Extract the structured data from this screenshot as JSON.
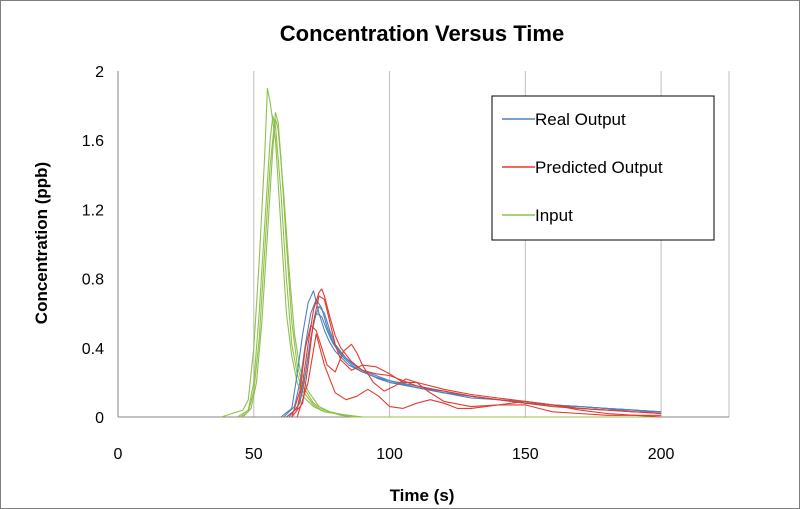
{
  "chart_data": {
    "type": "line",
    "title": "Concentration Versus Time",
    "xlabel": "Time (s)",
    "ylabel": "Concentration (ppb)",
    "xlim": [
      0,
      225
    ],
    "ylim": [
      0,
      2
    ],
    "x_ticks": [
      0,
      50,
      100,
      150,
      200
    ],
    "x_tick_labels": [
      "0",
      "50",
      "100",
      "150",
      "200"
    ],
    "y_ticks": [
      0,
      0.4,
      0.8,
      1.2,
      1.6,
      2
    ],
    "y_tick_labels": [
      "0",
      "0.4",
      "0.8",
      "1.2",
      "1.6",
      "2"
    ],
    "grid": "vertical",
    "legend": {
      "position": "top-right",
      "entries": [
        {
          "label": "Real Output",
          "color": "#4f81bd"
        },
        {
          "label": "Predicted Output",
          "color": "#e03c31"
        },
        {
          "label": "Input",
          "color": "#8fc04d"
        }
      ]
    },
    "series": [
      {
        "name": "Input",
        "color": "#8fc04d",
        "x": [
          38,
          42,
          46,
          48,
          50,
          52,
          54,
          55,
          56,
          58,
          60,
          62,
          64,
          66,
          68,
          72,
          76,
          80,
          85,
          90,
          200
        ],
        "y": [
          0,
          0.02,
          0.04,
          0.1,
          0.4,
          0.9,
          1.5,
          1.9,
          1.82,
          1.6,
          1.1,
          0.6,
          0.35,
          0.2,
          0.12,
          0.06,
          0.03,
          0.02,
          0.01,
          0,
          0
        ]
      },
      {
        "name": "Input",
        "color": "#8fc04d",
        "x": [
          44,
          48,
          50,
          52,
          54,
          56,
          57,
          58,
          60,
          62,
          64,
          66,
          68,
          72,
          76,
          80,
          86,
          200
        ],
        "y": [
          0,
          0.04,
          0.2,
          0.6,
          1.1,
          1.6,
          1.74,
          1.68,
          1.3,
          0.8,
          0.42,
          0.25,
          0.15,
          0.07,
          0.03,
          0.02,
          0,
          0
        ]
      },
      {
        "name": "Input",
        "color": "#8fc04d",
        "x": [
          45,
          48,
          50,
          52,
          54,
          56,
          58,
          59,
          60,
          62,
          64,
          66,
          68,
          72,
          76,
          82,
          88,
          200
        ],
        "y": [
          0,
          0.03,
          0.15,
          0.45,
          0.95,
          1.45,
          1.76,
          1.7,
          1.5,
          1.0,
          0.55,
          0.3,
          0.18,
          0.08,
          0.04,
          0.01,
          0,
          0
        ]
      },
      {
        "name": "Input",
        "color": "#8fc04d",
        "x": [
          46,
          49,
          51,
          53,
          55,
          57,
          58,
          59,
          61,
          63,
          65,
          67,
          70,
          74,
          78,
          84,
          90,
          200
        ],
        "y": [
          0,
          0.05,
          0.2,
          0.55,
          1.05,
          1.55,
          1.72,
          1.66,
          1.3,
          0.85,
          0.48,
          0.28,
          0.15,
          0.06,
          0.03,
          0.01,
          0,
          0
        ]
      },
      {
        "name": "Real Output",
        "color": "#4f81bd",
        "x": [
          60,
          64,
          66,
          68,
          70,
          72,
          74,
          76,
          78,
          80,
          85,
          90,
          95,
          100,
          110,
          120,
          130,
          140,
          150,
          160,
          170,
          180,
          190,
          200
        ],
        "y": [
          0,
          0.05,
          0.25,
          0.48,
          0.66,
          0.73,
          0.6,
          0.5,
          0.43,
          0.38,
          0.3,
          0.26,
          0.23,
          0.21,
          0.17,
          0.14,
          0.12,
          0.1,
          0.08,
          0.07,
          0.06,
          0.05,
          0.04,
          0.03
        ]
      },
      {
        "name": "Real Output",
        "color": "#4f81bd",
        "x": [
          61,
          65,
          67,
          69,
          71,
          73,
          75,
          77,
          79,
          82,
          86,
          90,
          95,
          100,
          110,
          120,
          130,
          140,
          150,
          160,
          170,
          180,
          190,
          200
        ],
        "y": [
          0,
          0.06,
          0.2,
          0.42,
          0.6,
          0.68,
          0.63,
          0.52,
          0.44,
          0.37,
          0.31,
          0.27,
          0.24,
          0.21,
          0.18,
          0.15,
          0.12,
          0.1,
          0.09,
          0.07,
          0.06,
          0.05,
          0.04,
          0.03
        ]
      },
      {
        "name": "Real Output",
        "color": "#4f81bd",
        "x": [
          62,
          66,
          68,
          70,
          72,
          74,
          76,
          78,
          80,
          84,
          88,
          92,
          96,
          100,
          110,
          120,
          130,
          140,
          150,
          160,
          170,
          180,
          190,
          200
        ],
        "y": [
          0,
          0.05,
          0.15,
          0.35,
          0.55,
          0.64,
          0.6,
          0.5,
          0.42,
          0.34,
          0.29,
          0.25,
          0.22,
          0.2,
          0.17,
          0.14,
          0.11,
          0.1,
          0.08,
          0.07,
          0.06,
          0.05,
          0.04,
          0.02
        ]
      },
      {
        "name": "Real Output",
        "color": "#4f81bd",
        "x": [
          63,
          67,
          69,
          71,
          73,
          75,
          77,
          79,
          82,
          86,
          90,
          95,
          100,
          110,
          120,
          130,
          140,
          150,
          160,
          170,
          180,
          190,
          200
        ],
        "y": [
          0,
          0.08,
          0.25,
          0.46,
          0.6,
          0.58,
          0.5,
          0.43,
          0.36,
          0.3,
          0.26,
          0.23,
          0.2,
          0.17,
          0.14,
          0.12,
          0.1,
          0.08,
          0.07,
          0.05,
          0.04,
          0.04,
          0.03
        ]
      },
      {
        "name": "Predicted Output",
        "color": "#e03c31",
        "x": [
          62,
          66,
          68,
          70,
          72,
          74,
          75,
          76,
          78,
          80,
          82,
          86,
          90,
          95,
          100,
          105,
          110,
          115,
          120,
          130,
          140,
          150,
          160,
          170,
          180,
          190,
          200
        ],
        "y": [
          0,
          0.05,
          0.2,
          0.42,
          0.62,
          0.72,
          0.74,
          0.7,
          0.58,
          0.47,
          0.4,
          0.32,
          0.27,
          0.25,
          0.24,
          0.21,
          0.18,
          0.16,
          0.15,
          0.12,
          0.1,
          0.08,
          0.06,
          0.05,
          0.04,
          0.03,
          0.02
        ]
      },
      {
        "name": "Predicted Output",
        "color": "#e03c31",
        "x": [
          64,
          68,
          70,
          72,
          74,
          76,
          78,
          80,
          82,
          86,
          90,
          95,
          100,
          105,
          110,
          120,
          130,
          140,
          150,
          160,
          170,
          180,
          190,
          200
        ],
        "y": [
          0,
          0.08,
          0.3,
          0.55,
          0.7,
          0.68,
          0.55,
          0.42,
          0.33,
          0.27,
          0.3,
          0.29,
          0.25,
          0.2,
          0.2,
          0.16,
          0.13,
          0.11,
          0.09,
          0.07,
          0.05,
          0.04,
          0.03,
          0.02
        ]
      },
      {
        "name": "Predicted Output",
        "color": "#e03c31",
        "x": [
          64,
          67,
          69,
          71,
          73,
          75,
          77,
          80,
          83,
          86,
          88,
          90,
          94,
          98,
          102,
          106,
          110,
          114,
          120,
          130,
          140,
          150,
          160,
          170,
          180,
          190,
          200
        ],
        "y": [
          0,
          0.15,
          0.4,
          0.53,
          0.5,
          0.4,
          0.3,
          0.26,
          0.38,
          0.42,
          0.37,
          0.3,
          0.2,
          0.15,
          0.18,
          0.22,
          0.2,
          0.15,
          0.09,
          0.06,
          0.07,
          0.09,
          0.07,
          0.04,
          0.02,
          0.01,
          0.01
        ]
      },
      {
        "name": "Predicted Output",
        "color": "#e03c31",
        "x": [
          66,
          70,
          73,
          76,
          80,
          84,
          88,
          92,
          96,
          100,
          105,
          110,
          115,
          120,
          125,
          130,
          140,
          150,
          155,
          160,
          170,
          180,
          190,
          200
        ],
        "y": [
          0,
          0.2,
          0.48,
          0.3,
          0.14,
          0.1,
          0.12,
          0.16,
          0.12,
          0.06,
          0.05,
          0.08,
          0.1,
          0.08,
          0.05,
          0.05,
          0.07,
          0.07,
          0.05,
          0.03,
          0.02,
          0.01,
          0.01,
          0
        ]
      }
    ]
  }
}
